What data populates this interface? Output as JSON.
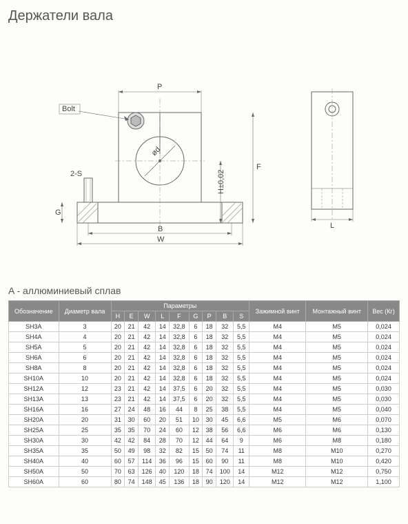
{
  "title": "Держатели вала",
  "subtitle": "A - аллюминиевый сплав",
  "diagram": {
    "bolt_label": "Bolt",
    "dims": {
      "P": "P",
      "W": "W",
      "B": "B",
      "G": "G",
      "F": "F",
      "H": "H±0,02",
      "L": "L",
      "S2": "2-S",
      "d": "ød"
    },
    "stroke": "#666",
    "fill_hatch": "#bbb"
  },
  "table": {
    "header_bg": "#888888",
    "columns_group": "Параметры",
    "columns": [
      "Обозначение",
      "Диаметр вала",
      "H",
      "E",
      "W",
      "L",
      "F",
      "G",
      "P",
      "B",
      "S",
      "Зажимной винт",
      "Монтажный винт",
      "Вес (Кг)"
    ],
    "rows": [
      [
        "SH3A",
        "3",
        "20",
        "21",
        "42",
        "14",
        "32,8",
        "6",
        "18",
        "32",
        "5,5",
        "M4",
        "M5",
        "0,024"
      ],
      [
        "SH4A",
        "4",
        "20",
        "21",
        "42",
        "14",
        "32,8",
        "6",
        "18",
        "32",
        "5,5",
        "M4",
        "M5",
        "0,024"
      ],
      [
        "SH5A",
        "5",
        "20",
        "21",
        "42",
        "14",
        "32,8",
        "6",
        "18",
        "32",
        "5,5",
        "M4",
        "M5",
        "0,024"
      ],
      [
        "SH6A",
        "6",
        "20",
        "21",
        "42",
        "14",
        "32,8",
        "6",
        "18",
        "32",
        "5,5",
        "M4",
        "M5",
        "0,024"
      ],
      [
        "SH8A",
        "8",
        "20",
        "21",
        "42",
        "14",
        "32,8",
        "6",
        "18",
        "32",
        "5,5",
        "M4",
        "M5",
        "0,024"
      ],
      [
        "SH10A",
        "10",
        "20",
        "21",
        "42",
        "14",
        "32,8",
        "6",
        "18",
        "32",
        "5,5",
        "M4",
        "M5",
        "0,024"
      ],
      [
        "SH12A",
        "12",
        "23",
        "21",
        "42",
        "14",
        "37,5",
        "6",
        "20",
        "32",
        "5,5",
        "M4",
        "M5",
        "0,030"
      ],
      [
        "SH13A",
        "13",
        "23",
        "21",
        "42",
        "14",
        "37,5",
        "6",
        "20",
        "32",
        "5,5",
        "M4",
        "M5",
        "0,030"
      ],
      [
        "SH16A",
        "16",
        "27",
        "24",
        "48",
        "16",
        "44",
        "8",
        "25",
        "38",
        "5,5",
        "M4",
        "M5",
        "0,040"
      ],
      [
        "SH20A",
        "20",
        "31",
        "30",
        "60",
        "20",
        "51",
        "10",
        "30",
        "45",
        "6,6",
        "M5",
        "M6",
        "0,070"
      ],
      [
        "SH25A",
        "25",
        "35",
        "35",
        "70",
        "24",
        "60",
        "12",
        "38",
        "56",
        "6,6",
        "M6",
        "M6",
        "0,130"
      ],
      [
        "SH30A",
        "30",
        "42",
        "42",
        "84",
        "28",
        "70",
        "12",
        "44",
        "64",
        "9",
        "M6",
        "M8",
        "0,180"
      ],
      [
        "SH35A",
        "35",
        "50",
        "49",
        "98",
        "32",
        "82",
        "15",
        "50",
        "74",
        "11",
        "M8",
        "M10",
        "0,270"
      ],
      [
        "SH40A",
        "40",
        "60",
        "57",
        "114",
        "36",
        "96",
        "15",
        "60",
        "90",
        "11",
        "M8",
        "M10",
        "0,420"
      ],
      [
        "SH50A",
        "50",
        "70",
        "63",
        "126",
        "40",
        "120",
        "18",
        "74",
        "100",
        "14",
        "M12",
        "M12",
        "0,750"
      ],
      [
        "SH60A",
        "60",
        "80",
        "74",
        "148",
        "45",
        "136",
        "18",
        "90",
        "120",
        "14",
        "M12",
        "M12",
        "1,100"
      ]
    ]
  }
}
